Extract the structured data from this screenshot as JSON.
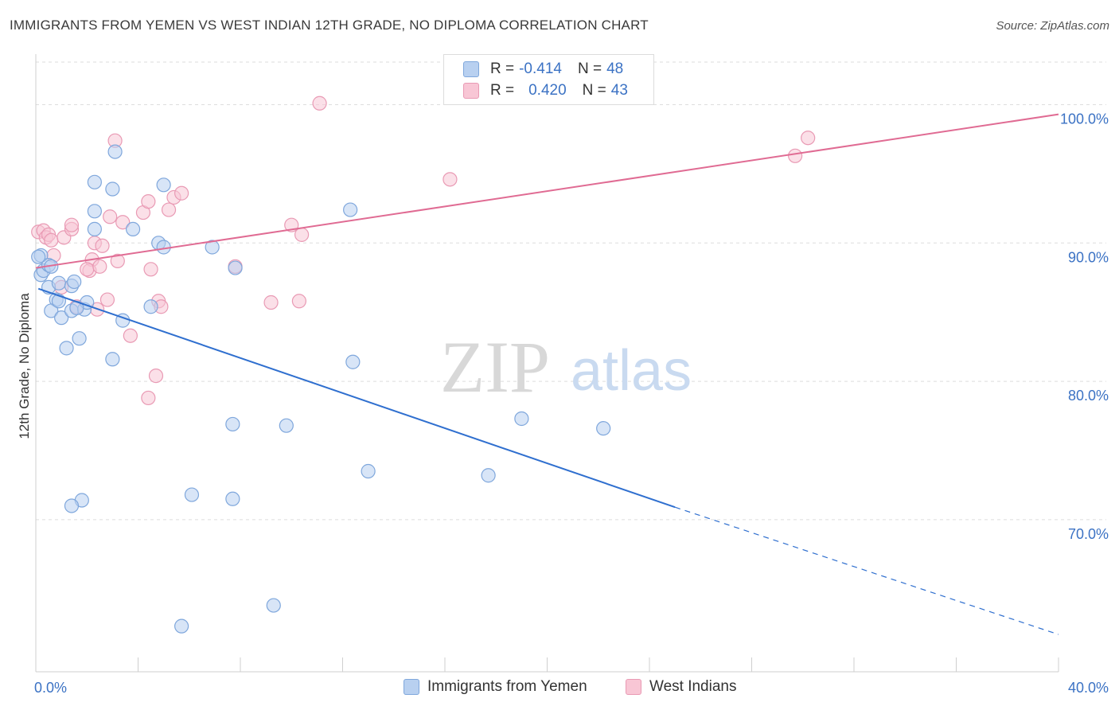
{
  "title": "IMMIGRANTS FROM YEMEN VS WEST INDIAN 12TH GRADE, NO DIPLOMA CORRELATION CHART",
  "source": "Source: ZipAtlas.com",
  "watermark": {
    "zip": "ZIP",
    "atlas": "atlas"
  },
  "legend_top": {
    "rows": [
      {
        "r_label": "R =",
        "r_value": "-0.414",
        "n_label": "N =",
        "n_value": "48"
      },
      {
        "r_label": "R =",
        "r_value": "0.420",
        "n_label": "N =",
        "n_value": "43"
      }
    ]
  },
  "legend_bottom": {
    "yemen": "Immigrants from Yemen",
    "west_indians": "West Indians"
  },
  "colors": {
    "yemen_fill": "#b8d0f0",
    "yemen_stroke": "#7fa7dc",
    "yemen_line": "#2f6fcf",
    "west_fill": "#f8c6d5",
    "west_stroke": "#e99ab4",
    "west_line": "#e06b93",
    "tick_label": "#3b72c4",
    "grid": "#dedede"
  },
  "chart_data": {
    "type": "scatter",
    "title": "IMMIGRANTS FROM YEMEN VS WEST INDIAN 12TH GRADE, NO DIPLOMA CORRELATION CHART",
    "xlabel": "",
    "ylabel": "12th Grade, No Diploma",
    "xlim": [
      0,
      40
    ],
    "ylim": [
      59,
      104
    ],
    "x_tick_labels": [
      "0.0%",
      "40.0%"
    ],
    "y_ticks": [
      70,
      80,
      90,
      100
    ],
    "y_tick_labels": [
      "70.0%",
      "80.0%",
      "90.0%",
      "100.0%"
    ],
    "grid": "horizontal dashed",
    "legend": "top-center",
    "series": [
      {
        "name": "Immigrants from Yemen",
        "r": -0.414,
        "n": 48,
        "trend": {
          "x0": 0.1,
          "y0": 86.7,
          "x1": 25.0,
          "y1": 70.9,
          "dash_to_x": 40.0,
          "dash_to_y": 61.7
        },
        "points": [
          [
            0.2,
            87.7
          ],
          [
            0.3,
            88.0
          ],
          [
            0.2,
            89.1
          ],
          [
            0.5,
            88.4
          ],
          [
            0.5,
            86.8
          ],
          [
            0.8,
            85.9
          ],
          [
            0.6,
            85.1
          ],
          [
            0.9,
            85.8
          ],
          [
            1.0,
            84.6
          ],
          [
            0.9,
            87.1
          ],
          [
            1.4,
            86.9
          ],
          [
            1.5,
            87.2
          ],
          [
            1.4,
            85.1
          ],
          [
            1.9,
            85.2
          ],
          [
            2.0,
            85.7
          ],
          [
            1.7,
            83.1
          ],
          [
            1.2,
            82.4
          ],
          [
            2.3,
            92.3
          ],
          [
            2.3,
            91.0
          ],
          [
            2.3,
            94.4
          ],
          [
            3.0,
            93.9
          ],
          [
            3.1,
            96.6
          ],
          [
            3.4,
            84.4
          ],
          [
            3.0,
            81.6
          ],
          [
            3.8,
            91.0
          ],
          [
            4.5,
            85.4
          ],
          [
            4.8,
            90.0
          ],
          [
            5.0,
            89.7
          ],
          [
            5.0,
            94.2
          ],
          [
            6.9,
            89.7
          ],
          [
            7.8,
            88.2
          ],
          [
            12.3,
            92.4
          ],
          [
            12.4,
            81.4
          ],
          [
            7.7,
            76.9
          ],
          [
            9.8,
            76.8
          ],
          [
            19.0,
            77.3
          ],
          [
            22.2,
            76.6
          ],
          [
            13.0,
            73.5
          ],
          [
            17.7,
            73.2
          ],
          [
            6.1,
            71.8
          ],
          [
            7.7,
            71.5
          ],
          [
            1.8,
            71.4
          ],
          [
            1.4,
            71.0
          ],
          [
            9.3,
            63.8
          ],
          [
            5.7,
            62.3
          ],
          [
            0.1,
            89.0
          ],
          [
            0.6,
            88.3
          ],
          [
            1.6,
            85.3
          ]
        ]
      },
      {
        "name": "West Indians",
        "r": 0.42,
        "n": 43,
        "trend": {
          "x0": 0.0,
          "y0": 88.2,
          "x1": 40.0,
          "y1": 99.3
        },
        "points": [
          [
            0.1,
            90.8
          ],
          [
            0.3,
            90.9
          ],
          [
            0.4,
            90.4
          ],
          [
            0.5,
            90.6
          ],
          [
            0.6,
            90.2
          ],
          [
            0.7,
            89.1
          ],
          [
            1.1,
            90.4
          ],
          [
            1.4,
            91.0
          ],
          [
            1.4,
            91.3
          ],
          [
            1.6,
            85.4
          ],
          [
            2.2,
            88.8
          ],
          [
            2.1,
            88.0
          ],
          [
            2.0,
            88.1
          ],
          [
            2.3,
            90.0
          ],
          [
            2.6,
            89.8
          ],
          [
            2.5,
            88.3
          ],
          [
            2.8,
            85.9
          ],
          [
            2.9,
            91.9
          ],
          [
            3.1,
            97.4
          ],
          [
            3.2,
            88.7
          ],
          [
            3.4,
            91.5
          ],
          [
            3.7,
            83.3
          ],
          [
            4.2,
            92.2
          ],
          [
            4.4,
            93.0
          ],
          [
            4.5,
            88.1
          ],
          [
            4.8,
            85.8
          ],
          [
            4.9,
            85.4
          ],
          [
            5.2,
            92.4
          ],
          [
            5.4,
            93.3
          ],
          [
            5.7,
            93.6
          ],
          [
            4.7,
            80.4
          ],
          [
            4.4,
            78.8
          ],
          [
            7.8,
            88.3
          ],
          [
            9.2,
            85.7
          ],
          [
            10.0,
            91.3
          ],
          [
            10.3,
            85.8
          ],
          [
            10.4,
            90.6
          ],
          [
            11.1,
            100.1
          ],
          [
            16.2,
            94.6
          ],
          [
            29.7,
            96.3
          ],
          [
            30.2,
            97.6
          ],
          [
            1.0,
            86.8
          ],
          [
            2.4,
            85.2
          ]
        ]
      }
    ]
  }
}
